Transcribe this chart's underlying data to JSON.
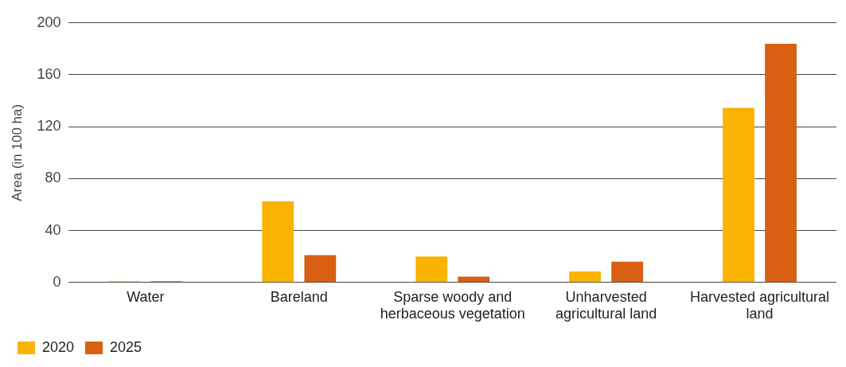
{
  "chart_data": {
    "type": "bar",
    "ylabel": "Area (in 100 ha)",
    "categories": [
      "Water",
      "Bareland",
      "Sparse woody and herbaceous vegetation",
      "Unharvested agricultural land",
      "Harvested agricultural land"
    ],
    "series": [
      {
        "name": "2020",
        "color": "#f9b300",
        "values": [
          1,
          62.5,
          20,
          8.5,
          134.5
        ]
      },
      {
        "name": "2025",
        "color": "#d95f12",
        "values": [
          1,
          21,
          4.5,
          16,
          184
        ]
      }
    ],
    "ylim": [
      0,
      200
    ],
    "yticks": [
      0,
      40,
      80,
      120,
      160,
      200
    ],
    "grid": "y",
    "legend": "bottom left"
  }
}
